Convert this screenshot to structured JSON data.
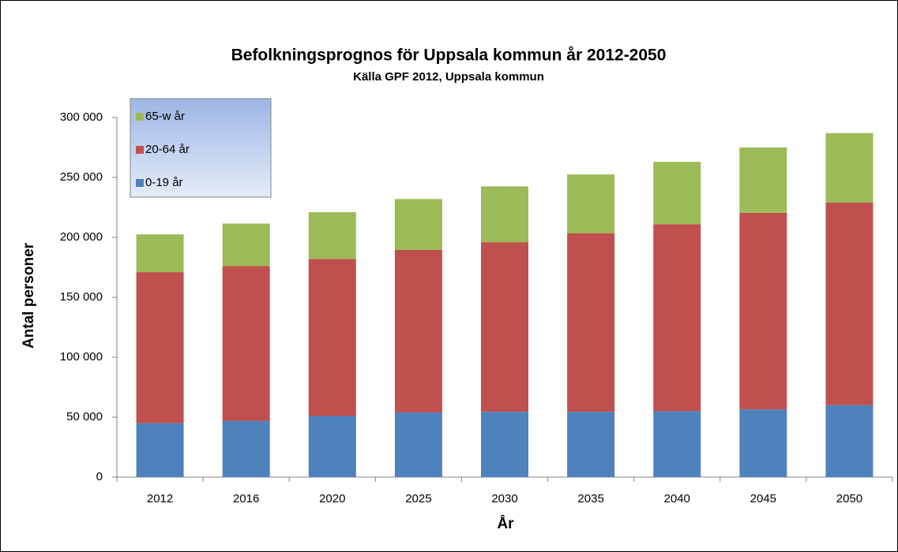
{
  "chart_data": {
    "type": "stacked_bar",
    "title": "Befolkningsprognos för Uppsala kommun år 2012-2050",
    "subtitle": "Källa GPF 2012, Uppsala kommun",
    "x_label": "År",
    "y_label": "Antal personer",
    "categories": [
      "2012",
      "2016",
      "2020",
      "2025",
      "2030",
      "2035",
      "2040",
      "2045",
      "2050"
    ],
    "series": [
      {
        "name": "0-19 år",
        "color": "#4f81bd",
        "values": [
          45000,
          47000,
          51000,
          54000,
          54500,
          54500,
          55000,
          56500,
          60000
        ]
      },
      {
        "name": "20-64 år",
        "color": "#c0504d",
        "values": [
          126000,
          129000,
          131000,
          135500,
          141500,
          149000,
          156000,
          164000,
          169000
        ]
      },
      {
        "name": "65-w år",
        "color": "#9bbb59",
        "values": [
          31500,
          35500,
          39000,
          42500,
          46500,
          49000,
          52000,
          54500,
          58000
        ]
      }
    ],
    "ylim": [
      0,
      300000
    ],
    "yticks": [
      0,
      {
        "value": 50000,
        "label": "50 000"
      },
      {
        "value": 100000,
        "label": "100 000"
      },
      {
        "value": 150000,
        "label": "150 000"
      },
      {
        "value": 200000,
        "label": "200 000"
      },
      {
        "value": 250000,
        "label": "250 000"
      },
      {
        "value": 300000,
        "label": "300 000"
      }
    ],
    "grid": false,
    "legend": "upper-left"
  }
}
